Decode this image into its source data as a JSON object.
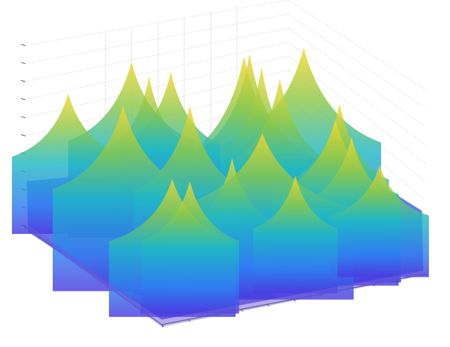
{
  "chart_data": {
    "type": "surface",
    "title": "",
    "xlabel": "",
    "ylabel": "",
    "zlabel": "",
    "colormap": "parula",
    "colors": {
      "low": "#3e26a8",
      "mid": "#1fb8c4",
      "high": "#f9d82c"
    },
    "grid": true,
    "face_alpha": "semi-transparent",
    "tick_labels_legible": false
  }
}
